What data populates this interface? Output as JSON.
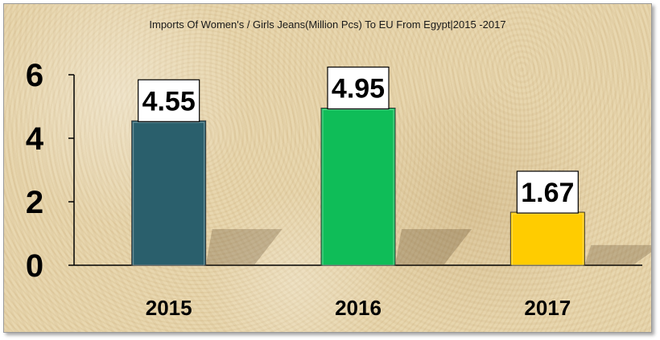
{
  "chart_data": {
    "type": "bar",
    "title": "Imports Of Women's / Girls Jeans(Million Pcs) To EU From Egypt|2015 -2017",
    "xlabel": "",
    "ylabel": "",
    "categories": [
      "2015",
      "2016",
      "2017"
    ],
    "values": [
      4.55,
      4.95,
      1.67
    ],
    "value_labels": [
      "4.55",
      "4.95",
      "1.67"
    ],
    "ylim": [
      0,
      6
    ],
    "yticks": [
      "0",
      "2",
      "4",
      "6"
    ],
    "grid": false,
    "legend": "none",
    "colors": [
      "#2a5f6c",
      "#0fbd58",
      "#ffcc00"
    ]
  }
}
